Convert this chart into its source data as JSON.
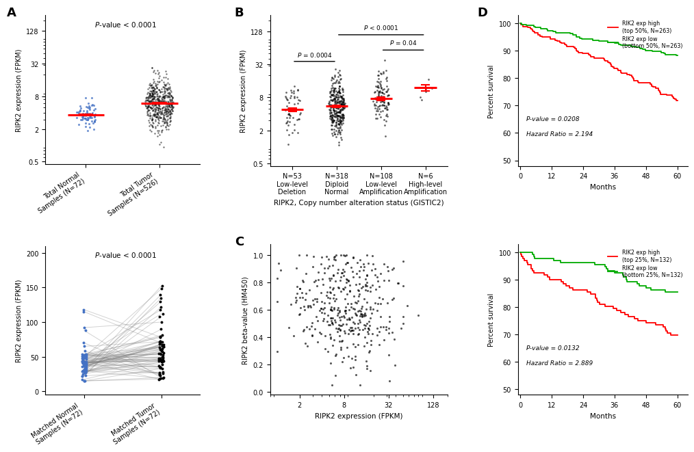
{
  "panel_A_top": {
    "title": "P-value < 0.0001",
    "ylabel": "RIPK2 expression (FPKM)",
    "yticks": [
      0.5,
      2,
      8,
      32,
      128
    ],
    "ytick_labels": [
      "0.5",
      "2",
      "8",
      "32",
      "128"
    ],
    "group1_label": "Total Normal\nSamples (N=72)",
    "group2_label": "Total Tumor\nSamples (N=526)",
    "group1_n": 72,
    "group2_n": 526,
    "group1_mean": 3.5,
    "group2_mean": 5.8,
    "group1_color": "#4472C4",
    "group2_color": "#000000",
    "mean_color": "#FF0000"
  },
  "panel_A_bottom": {
    "title": "P-value < 0.0001",
    "ylabel": "RIPK2 expression (FPKM)",
    "yticks": [
      0,
      50,
      100,
      150,
      200
    ],
    "group1_label": "Matched Normal\nSamples (N=72)",
    "group2_label": "Matched Tumor\nSamples (N=72)",
    "n_pairs": 72
  },
  "panel_B": {
    "title_pval1": "P = 0.0004",
    "title_pval2": "P < 0.0001",
    "title_pval3": "P = 0.04",
    "ylabel": "RIPK2 expression (FPKM)",
    "xlabel": "RIPK2, Copy number alteration status (GISTIC2)",
    "yticks": [
      0.5,
      2,
      8,
      32,
      128
    ],
    "ytick_labels": [
      "0.5",
      "2",
      "8",
      "32",
      "128"
    ],
    "groups": [
      {
        "label": "N=53\nLow-level\nDeletion",
        "mean": 4.8,
        "sem": 0.35,
        "n": 53,
        "spread_log": 0.22
      },
      {
        "label": "N=318\nDiploid\nNormal",
        "mean": 5.5,
        "sem": 0.2,
        "n": 318,
        "spread_log": 0.28
      },
      {
        "label": "N=108\nLow-level\nAmplification",
        "mean": 7.5,
        "sem": 0.45,
        "n": 108,
        "spread_log": 0.25
      },
      {
        "label": "N=6\nHigh-level\nAmplification",
        "mean": 12.0,
        "sem": 1.5,
        "n": 6,
        "spread_log": 0.12
      }
    ]
  },
  "panel_C": {
    "xlabel": "RIPK2 expression (FPKM)",
    "ylabel": "RIPK2 beta-value (HM450)",
    "n_points": 280,
    "x_center_log": 0.9,
    "x_spread_log": 0.35,
    "y_center": 0.55,
    "y_spread": 0.22
  },
  "panel_D_top": {
    "pvalue": "P-value = 0.0208",
    "hazard_ratio": "Hazard Ratio = 2.194",
    "legend_high": "RIK2 exp high\n(top 50%, N=263)",
    "legend_low": "RIK2 exp low\n(bottom 50%, N=263)",
    "color_high": "#FF0000",
    "color_low": "#00AA00",
    "ylabel": "Percent survival",
    "xlabel": "Months",
    "yticks": [
      50,
      60,
      70,
      80,
      90,
      100
    ],
    "xticks": [
      0,
      12,
      24,
      36,
      48,
      60
    ],
    "surv_high_final": 72,
    "surv_low_final": 87,
    "n_events_high": 263,
    "n_events_low": 263
  },
  "panel_D_bottom": {
    "pvalue": "P-value = 0.0132",
    "hazard_ratio": "Hazard Ratio = 2.889",
    "legend_high": "RIK2 exp high\n(top 25%, N=132)",
    "legend_low": "RIK2 exp low\n(bottom 25%, N=132)",
    "color_high": "#FF0000",
    "color_low": "#00AA00",
    "ylabel": "Percent survival",
    "xlabel": "Months",
    "yticks": [
      50,
      60,
      70,
      80,
      90,
      100
    ],
    "xticks": [
      0,
      12,
      24,
      36,
      48,
      60
    ],
    "surv_high_final": 68,
    "surv_low_final": 86,
    "n_events_high": 132,
    "n_events_low": 132
  }
}
